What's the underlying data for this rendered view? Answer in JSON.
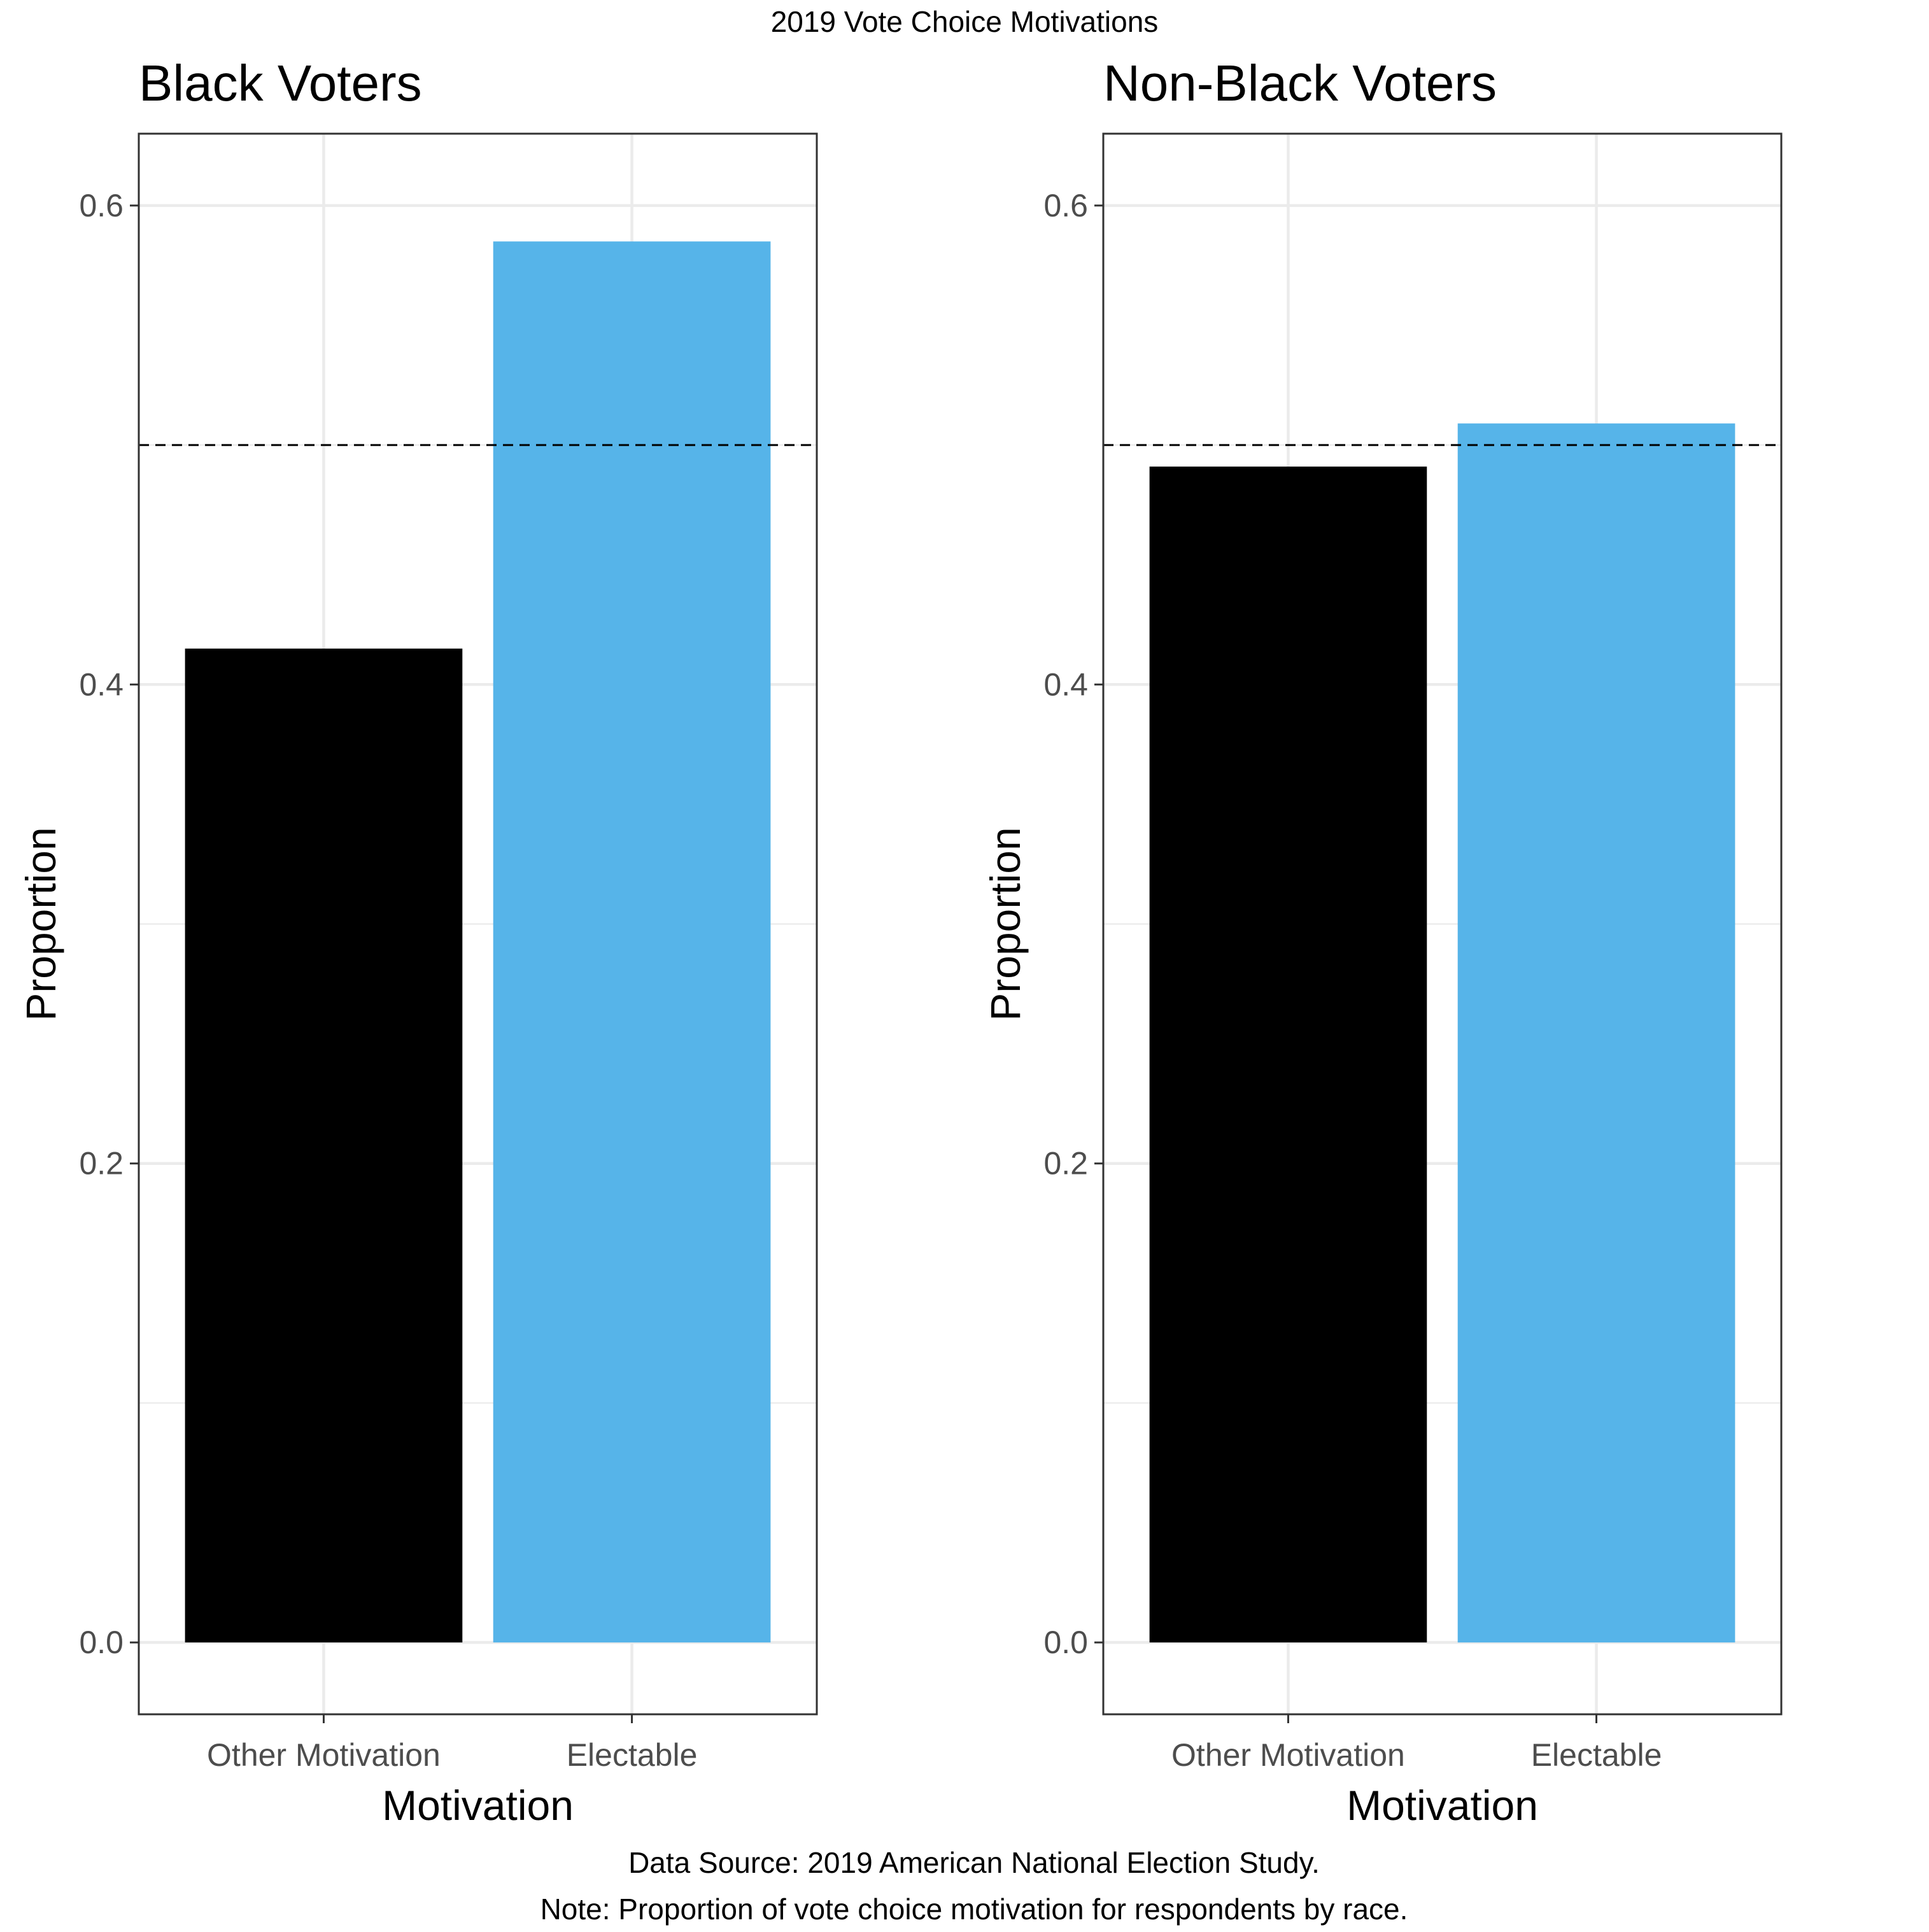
{
  "chart_data": {
    "type": "bar",
    "title": "2019 Vote Choice Motivations",
    "reference_line": 0.5,
    "ylim": [
      -0.03,
      0.63
    ],
    "y_ticks": [
      0.0,
      0.2,
      0.4,
      0.6
    ],
    "y_tick_labels": [
      "0.0",
      "0.2",
      "0.4",
      "0.6"
    ],
    "grid": true,
    "colors": {
      "Other Motivation": "#000000",
      "Electable": "#56B4E9"
    },
    "panels": [
      {
        "title": "Black Voters",
        "xlabel": "Motivation",
        "ylabel": "Proportion",
        "categories": [
          "Other Motivation",
          "Electable"
        ],
        "values": [
          0.415,
          0.585
        ]
      },
      {
        "title": "Non-Black Voters",
        "xlabel": "Motivation",
        "ylabel": "Proportion",
        "categories": [
          "Other Motivation",
          "Electable"
        ],
        "values": [
          0.491,
          0.509
        ]
      }
    ],
    "caption": [
      "Data Source: 2019 American National Election Study.",
      "Note: Proportion of vote choice motivation for respondents by race."
    ]
  }
}
